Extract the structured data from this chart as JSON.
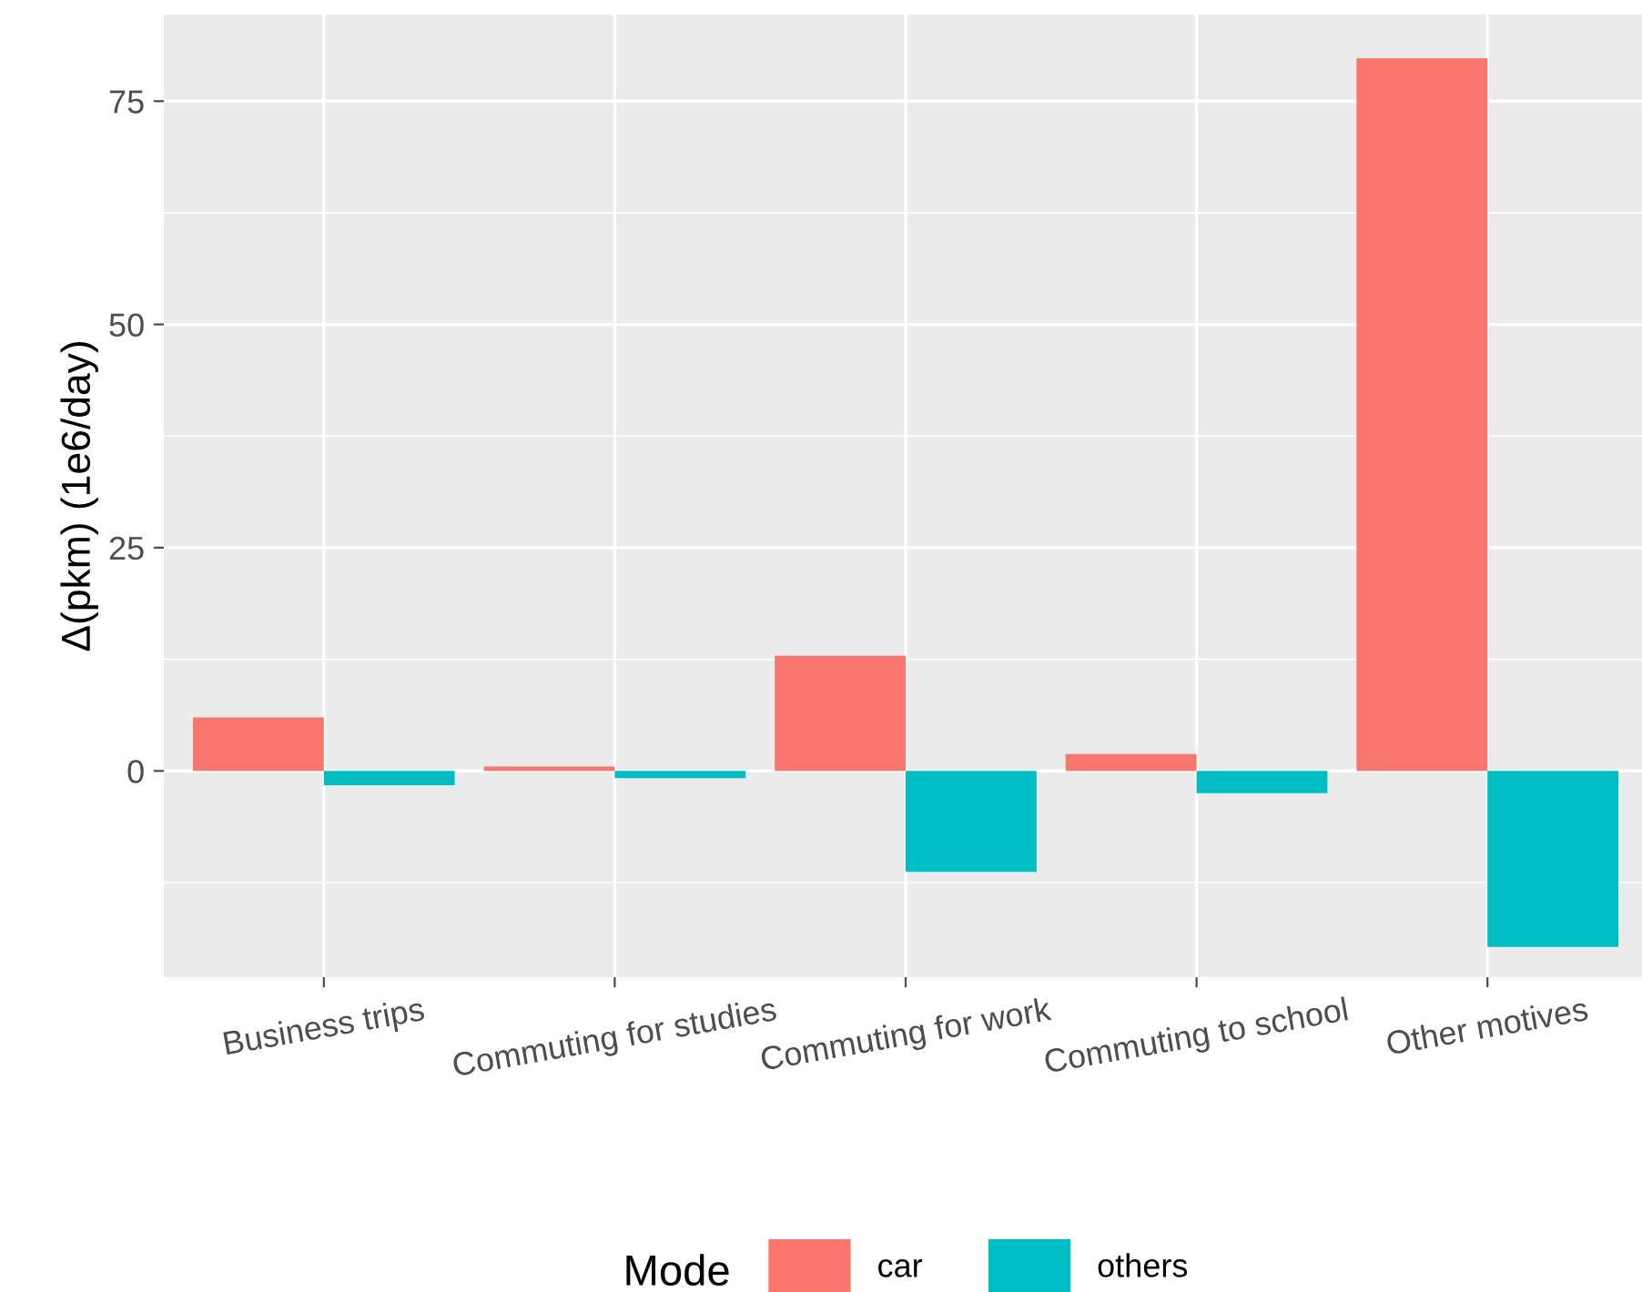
{
  "chart_data": {
    "type": "bar",
    "ylabel": "Δ(pkm) (1e6/day)",
    "legend_title": "Mode",
    "legend": "bottom",
    "grid": true,
    "categories": [
      "Business trips",
      "Commuting for studies",
      "Commuting for work",
      "Commuting to school",
      "Other motives"
    ],
    "series": [
      {
        "name": "car",
        "color": "#f8766d",
        "values": [
          6.0,
          0.5,
          12.9,
          1.9,
          79.8
        ]
      },
      {
        "name": "others",
        "color": "#00bfc4",
        "values": [
          -1.6,
          -0.8,
          -11.3,
          -2.5,
          -19.7
        ]
      }
    ],
    "ylim": [
      -23.1,
      84.7
    ],
    "yticks": [
      0,
      25,
      50,
      75
    ]
  }
}
